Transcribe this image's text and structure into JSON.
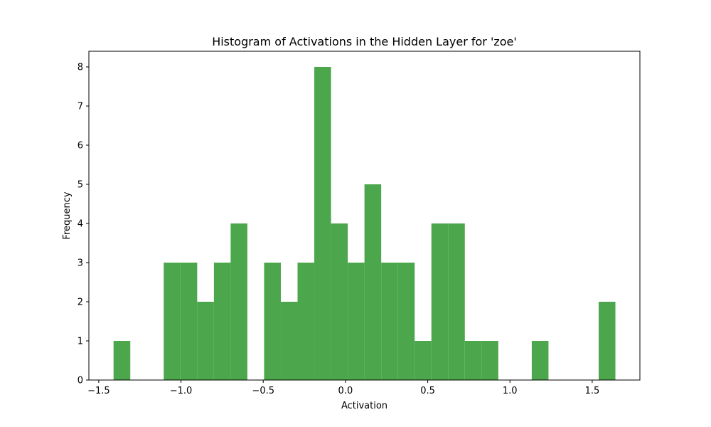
{
  "chart_data": {
    "type": "bar",
    "title": "Histogram of Activations in the Hidden Layer for 'zoe'",
    "xlabel": "Activation",
    "ylabel": "Frequency",
    "bar_color": "#4ca64c",
    "xlim": [
      -1.56,
      1.79
    ],
    "ylim": [
      0,
      8.4
    ],
    "x_ticks": [
      {
        "value": -1.5,
        "label": "−1.5"
      },
      {
        "value": -1.0,
        "label": "−1.0"
      },
      {
        "value": -0.5,
        "label": "−0.5"
      },
      {
        "value": 0.0,
        "label": "0.0"
      },
      {
        "value": 0.5,
        "label": "0.5"
      },
      {
        "value": 1.0,
        "label": "1.0"
      },
      {
        "value": 1.5,
        "label": "1.5"
      }
    ],
    "y_ticks": [
      {
        "value": 0,
        "label": "0"
      },
      {
        "value": 1,
        "label": "1"
      },
      {
        "value": 2,
        "label": "2"
      },
      {
        "value": 3,
        "label": "3"
      },
      {
        "value": 4,
        "label": "4"
      },
      {
        "value": 5,
        "label": "5"
      },
      {
        "value": 6,
        "label": "6"
      },
      {
        "value": 7,
        "label": "7"
      },
      {
        "value": 8,
        "label": "8"
      }
    ],
    "bin_start": -1.41,
    "bin_width": 0.1017,
    "values": [
      1,
      0,
      0,
      3,
      3,
      2,
      3,
      4,
      0,
      3,
      2,
      3,
      8,
      4,
      3,
      5,
      3,
      3,
      1,
      4,
      4,
      1,
      1,
      0,
      0,
      1,
      0,
      0,
      0,
      2
    ],
    "grid": false,
    "legend": false
  }
}
